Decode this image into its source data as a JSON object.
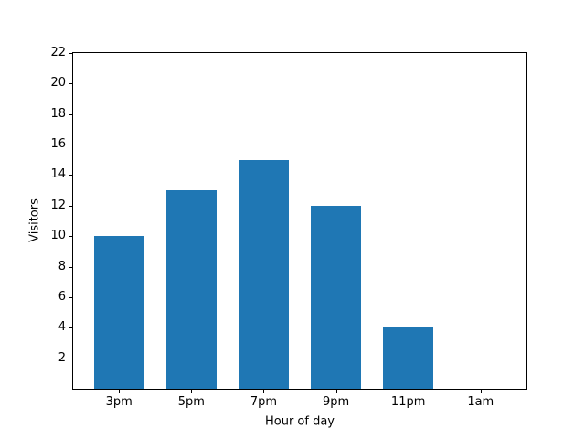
{
  "chart_data": {
    "type": "bar",
    "categories": [
      "3pm",
      "5pm",
      "7pm",
      "9pm",
      "11pm",
      "1am"
    ],
    "values": [
      10,
      13,
      15,
      12,
      4,
      0
    ],
    "title": "",
    "xlabel": "Hour of day",
    "ylabel": "Visitors",
    "ylim": [
      0,
      22
    ],
    "yticks": [
      2,
      4,
      6,
      8,
      10,
      12,
      14,
      16,
      18,
      20,
      22
    ],
    "x_range": [
      -0.635,
      5.635
    ],
    "bar_width_fraction": 0.7,
    "bar_color": "#1f77b4",
    "axis_color": "#000000",
    "background_color": "#ffffff",
    "grid": false,
    "legend": "none"
  }
}
